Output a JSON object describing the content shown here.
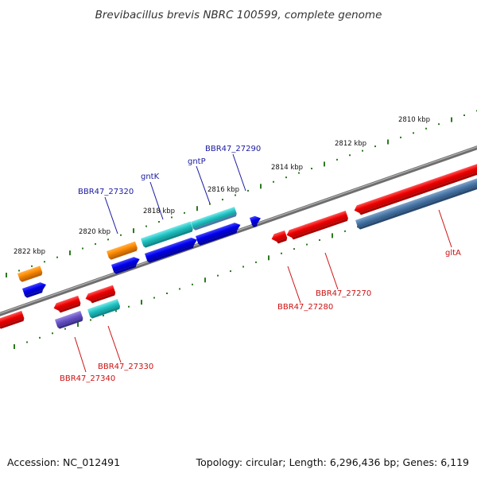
{
  "title": "Brevibacillus brevis NBRC 100599, complete genome",
  "footer": {
    "accession": "Accession: NC_012491",
    "summary": "Topology: circular; Length: 6,296,436 bp; Genes: 6,119"
  },
  "colors": {
    "forward_label": "#1a1aa0",
    "reverse_label": "#cc1111",
    "tick": "#2b7a1f",
    "backbone": "#8c8c8c"
  },
  "kbp_labels": [
    "2810 kbp",
    "2812 kbp",
    "2814 kbp",
    "2816 kbp",
    "2818 kbp",
    "2820 kbp",
    "2822 kbp"
  ],
  "gene_labels": {
    "forward": [
      "BBR47_27290",
      "gntP",
      "gntK",
      "BBR47_27320"
    ],
    "reverse": [
      "gltA",
      "BBR47_27270",
      "BBR47_27280",
      "BBR47_27330",
      "BBR47_27340"
    ]
  }
}
